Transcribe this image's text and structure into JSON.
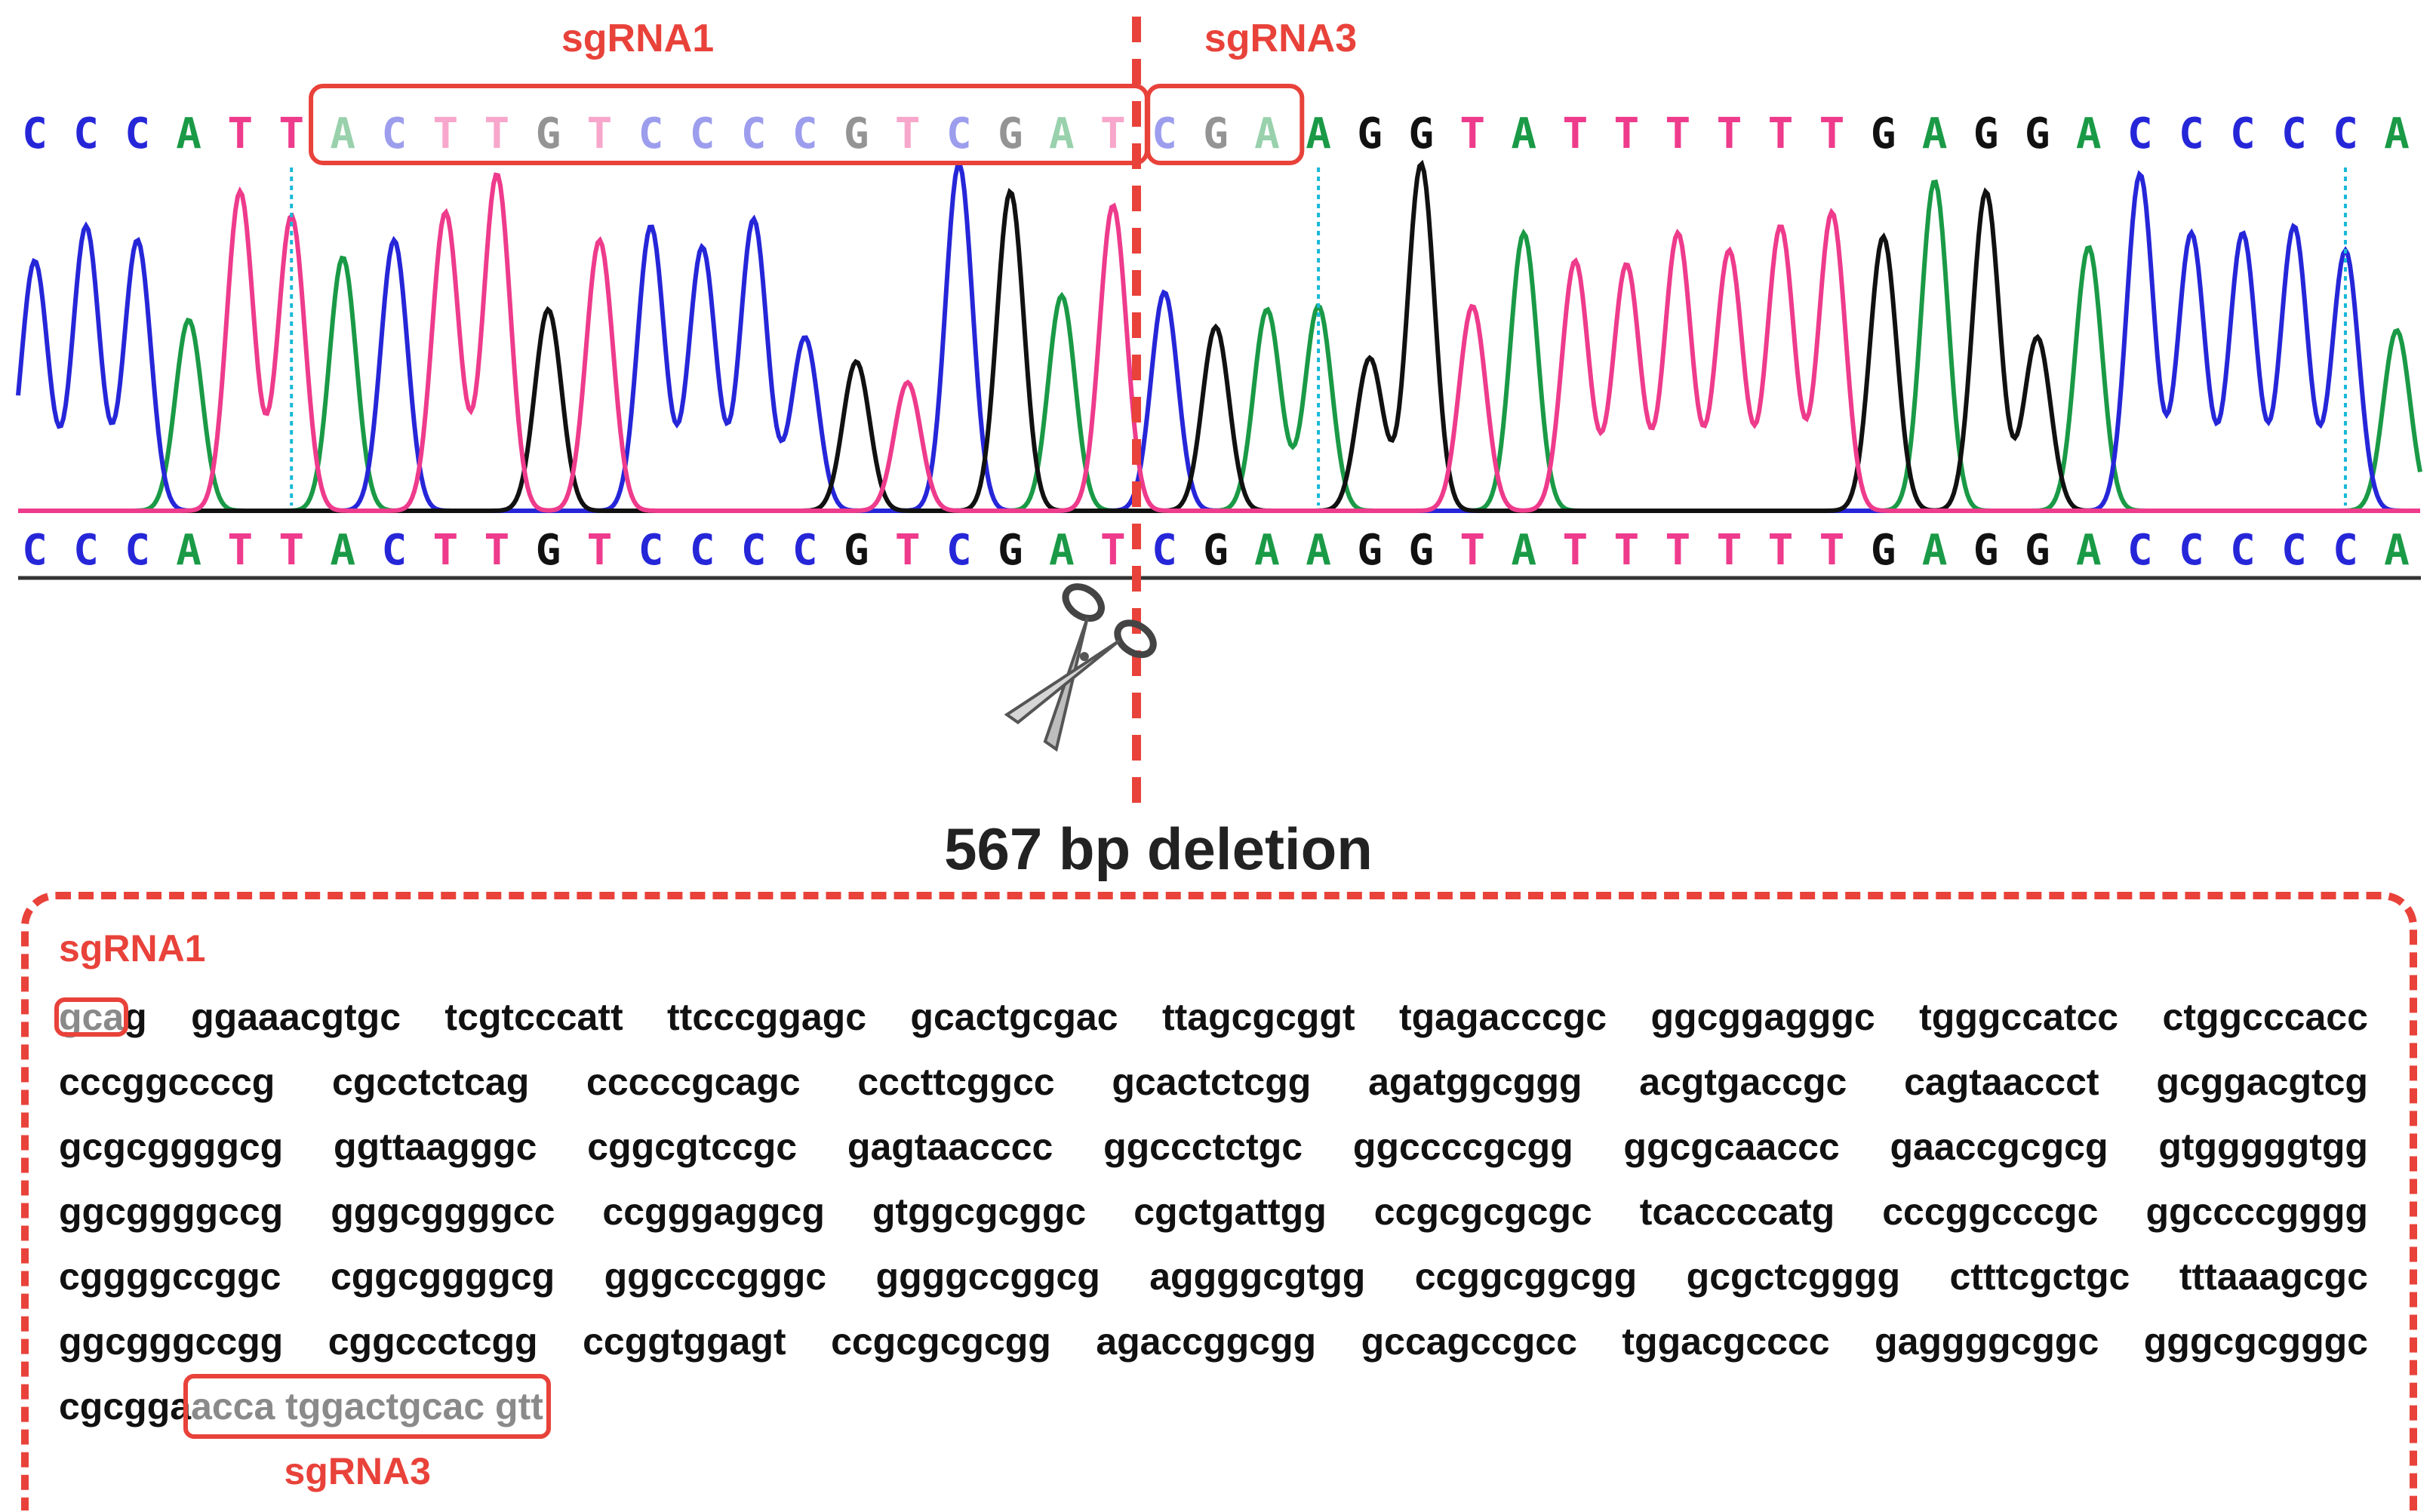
{
  "top_labels": {
    "sgrna1": "sgRNA1",
    "sgrna3": "sgRNA3"
  },
  "bases": "CCCATTACTTGTCCCCGTCGATCGAAGGTATTTTTTGAGGACCCCCA",
  "peak_heights": [
    0.72,
    0.82,
    0.78,
    0.55,
    0.92,
    0.85,
    0.73,
    0.78,
    0.86,
    0.97,
    0.58,
    0.78,
    0.82,
    0.76,
    0.84,
    0.5,
    0.43,
    0.37,
    1.0,
    0.92,
    0.62,
    0.88,
    0.63,
    0.53,
    0.58,
    0.59,
    0.44,
    1.0,
    0.59,
    0.8,
    0.72,
    0.71,
    0.8,
    0.75,
    0.82,
    0.86,
    0.79,
    0.95,
    0.92,
    0.5,
    0.76,
    0.97,
    0.8,
    0.8,
    0.82,
    0.75,
    0.52
  ],
  "colors": {
    "A": "#1a9a46",
    "C": "#2626d9",
    "G": "#111111",
    "T": "#ee3b8c",
    "accent": "#e8423a",
    "highlight_text": "#8a8a8a",
    "dotted_marker": "#18b8d8"
  },
  "deletion": {
    "title": "567 bp deletion"
  },
  "sequence": {
    "sgrna1_label": "sgRNA1",
    "sgrna3_label": "sgRNA3",
    "first_line": {
      "highlight": "gca",
      "rest": "g",
      "groups": [
        "ggaaacgtgc",
        "tcgtcccatt",
        "ttcccggagc",
        "gcactgcgac",
        "ttagcgcggt",
        "tgagacccgc",
        "ggcggagggc",
        "tgggccatcc",
        "ctggcccacc"
      ]
    },
    "middle_lines": [
      [
        "cccggccccg",
        "cgcctctcag",
        "cccccgcagc",
        "cccttcggcc",
        "gcactctcgg",
        "agatggcggg",
        "acgtgaccgc",
        "cagtaaccct",
        "gcggacgtcg"
      ],
      [
        "gcgcggggcg",
        "ggttaagggc",
        "cggcgtccgc",
        "gagtaacccc",
        "ggccctctgc",
        "ggccccgcgg",
        "ggcgcaaccc",
        "gaaccgcgcg",
        "gtgggggtgg"
      ],
      [
        "ggcggggccg",
        "gggcggggcc",
        "ccgggaggcg",
        "gtggcgcggc",
        "cgctgattgg",
        "ccgcgcgcgc",
        "tcaccccatg",
        "cccggcccgc",
        "ggccccgggg"
      ],
      [
        "cggggccggc",
        "cggcggggcg",
        "gggcccgggc",
        "ggggccggcg",
        "aggggcgtgg",
        "ccggcggcgg",
        "gcgctcgggg",
        "ctttcgctgc",
        "tttaaagcgc"
      ],
      [
        "ggcgggccgg",
        "cggccctcgg",
        "ccggtggagt",
        "ccgcgcgcgg",
        "agaccggcgg",
        "gccagccgcc",
        "tggacgcccc",
        "gaggggcggc",
        "gggcgcgggc"
      ]
    ],
    "last_line": {
      "prefix": "cgcgga",
      "highlight": "acca tggactgcac gtt"
    }
  }
}
